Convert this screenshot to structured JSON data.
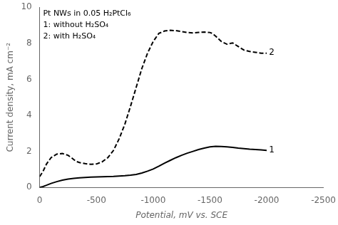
{
  "chart_data": {
    "type": "line",
    "title": "",
    "xlabel": "Potential, mV vs. SCE",
    "ylabel": "Current density, mA cm⁻²",
    "xlim": [
      0,
      -2500
    ],
    "ylim": [
      0,
      10
    ],
    "xticks": [
      0,
      -500,
      -1000,
      -1500,
      -2000,
      -2500
    ],
    "yticks": [
      0,
      2,
      4,
      6,
      8,
      10
    ],
    "grid": false,
    "series": [
      {
        "name": "1",
        "color": "#000000",
        "line_style": "solid",
        "label_x": -2020,
        "label_y": 2.05,
        "x": [
          0,
          -30,
          -60,
          -100,
          -150,
          -200,
          -250,
          -300,
          -350,
          -400,
          -450,
          -500,
          -550,
          -600,
          -650,
          -700,
          -750,
          -800,
          -850,
          -900,
          -950,
          -1000,
          -1050,
          -1100,
          -1150,
          -1200,
          -1250,
          -1300,
          -1350,
          -1400,
          -1450,
          -1500,
          -1550,
          -1600,
          -1650,
          -1700,
          -1750,
          -1800,
          -1850,
          -1900,
          -1950,
          -2000
        ],
        "values": [
          0.0,
          0.05,
          0.12,
          0.22,
          0.32,
          0.4,
          0.46,
          0.5,
          0.53,
          0.55,
          0.57,
          0.58,
          0.59,
          0.6,
          0.61,
          0.63,
          0.65,
          0.68,
          0.72,
          0.8,
          0.9,
          1.02,
          1.18,
          1.35,
          1.5,
          1.65,
          1.78,
          1.9,
          2.0,
          2.1,
          2.18,
          2.25,
          2.28,
          2.27,
          2.25,
          2.22,
          2.18,
          2.15,
          2.12,
          2.1,
          2.08,
          2.05
        ]
      },
      {
        "name": "2",
        "color": "#000000",
        "line_style": "dashed",
        "label_x": -2020,
        "label_y": 7.5,
        "x": [
          0,
          -30,
          -60,
          -100,
          -150,
          -200,
          -250,
          -280,
          -320,
          -350,
          -400,
          -450,
          -500,
          -550,
          -600,
          -650,
          -700,
          -750,
          -800,
          -850,
          -900,
          -950,
          -1000,
          -1050,
          -1100,
          -1150,
          -1200,
          -1250,
          -1300,
          -1350,
          -1400,
          -1450,
          -1500,
          -1520,
          -1550,
          -1600,
          -1650,
          -1700,
          -1750,
          -1800,
          -1850,
          -1900,
          -1950,
          -2000
        ],
        "values": [
          0.6,
          0.9,
          1.3,
          1.65,
          1.85,
          1.88,
          1.78,
          1.65,
          1.45,
          1.38,
          1.32,
          1.28,
          1.3,
          1.42,
          1.65,
          2.05,
          2.7,
          3.5,
          4.5,
          5.55,
          6.6,
          7.45,
          8.1,
          8.55,
          8.68,
          8.72,
          8.7,
          8.65,
          8.6,
          8.58,
          8.6,
          8.62,
          8.6,
          8.55,
          8.4,
          8.1,
          7.95,
          8.02,
          7.82,
          7.62,
          7.55,
          7.5,
          7.45,
          7.45
        ]
      }
    ],
    "annotations": [
      {
        "text": "Pt NWs in 0.05 H₂PtCl₆\n1: without H₂SO₄\n2: with H₂SO₄",
        "x": -30,
        "y": 9.85
      }
    ]
  }
}
